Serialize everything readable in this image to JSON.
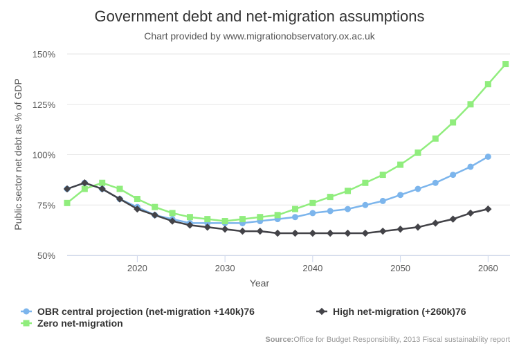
{
  "chart_data": {
    "type": "line",
    "title": "Government debt and net-migration assumptions",
    "subtitle": "Chart provided by www.migrationobservatory.ox.ac.uk",
    "xlabel": "Year",
    "ylabel": "Public sector net debt as % of GDP",
    "xlim": [
      2012,
      2062.5
    ],
    "ylim": [
      50,
      150
    ],
    "xticks": [
      2020,
      2030,
      2040,
      2050,
      2060
    ],
    "yticks": [
      50,
      75,
      100,
      125,
      150
    ],
    "ytick_labels": [
      "50%",
      "75%",
      "100%",
      "125%",
      "150%"
    ],
    "grid": "horizontal",
    "legend_position": "bottom",
    "x": [
      2012,
      2014,
      2016,
      2018,
      2020,
      2022,
      2024,
      2026,
      2028,
      2030,
      2032,
      2034,
      2036,
      2038,
      2040,
      2042,
      2044,
      2046,
      2048,
      2050,
      2052,
      2054,
      2056,
      2058,
      2060,
      2062
    ],
    "series": [
      {
        "name": "OBR central projection (net-migration +140k)76",
        "color": "#7cb5ec",
        "marker": "circle",
        "values": [
          83,
          86,
          83,
          78,
          74,
          70,
          68,
          66,
          66,
          66,
          66,
          67,
          68,
          69,
          71,
          72,
          73,
          75,
          77,
          80,
          83,
          86,
          90,
          94,
          99,
          null
        ]
      },
      {
        "name": "High net-migration (+260k)76",
        "color": "#434348",
        "marker": "diamond",
        "values": [
          83,
          86,
          83,
          78,
          73,
          70,
          67,
          65,
          64,
          63,
          62,
          62,
          61,
          61,
          61,
          61,
          61,
          61,
          62,
          63,
          64,
          66,
          68,
          71,
          73,
          null
        ]
      },
      {
        "name": "Zero net-migration",
        "color": "#90ed7d",
        "marker": "square",
        "values": [
          76,
          83,
          86,
          83,
          78,
          74,
          71,
          69,
          68,
          67,
          68,
          69,
          70,
          73,
          76,
          79,
          82,
          86,
          90,
          95,
          101,
          108,
          116,
          125,
          135,
          145
        ]
      }
    ]
  },
  "credits": {
    "label": "Source:",
    "text": "Office for Budget Responsibility, 2013 Fiscal sustainability report"
  }
}
